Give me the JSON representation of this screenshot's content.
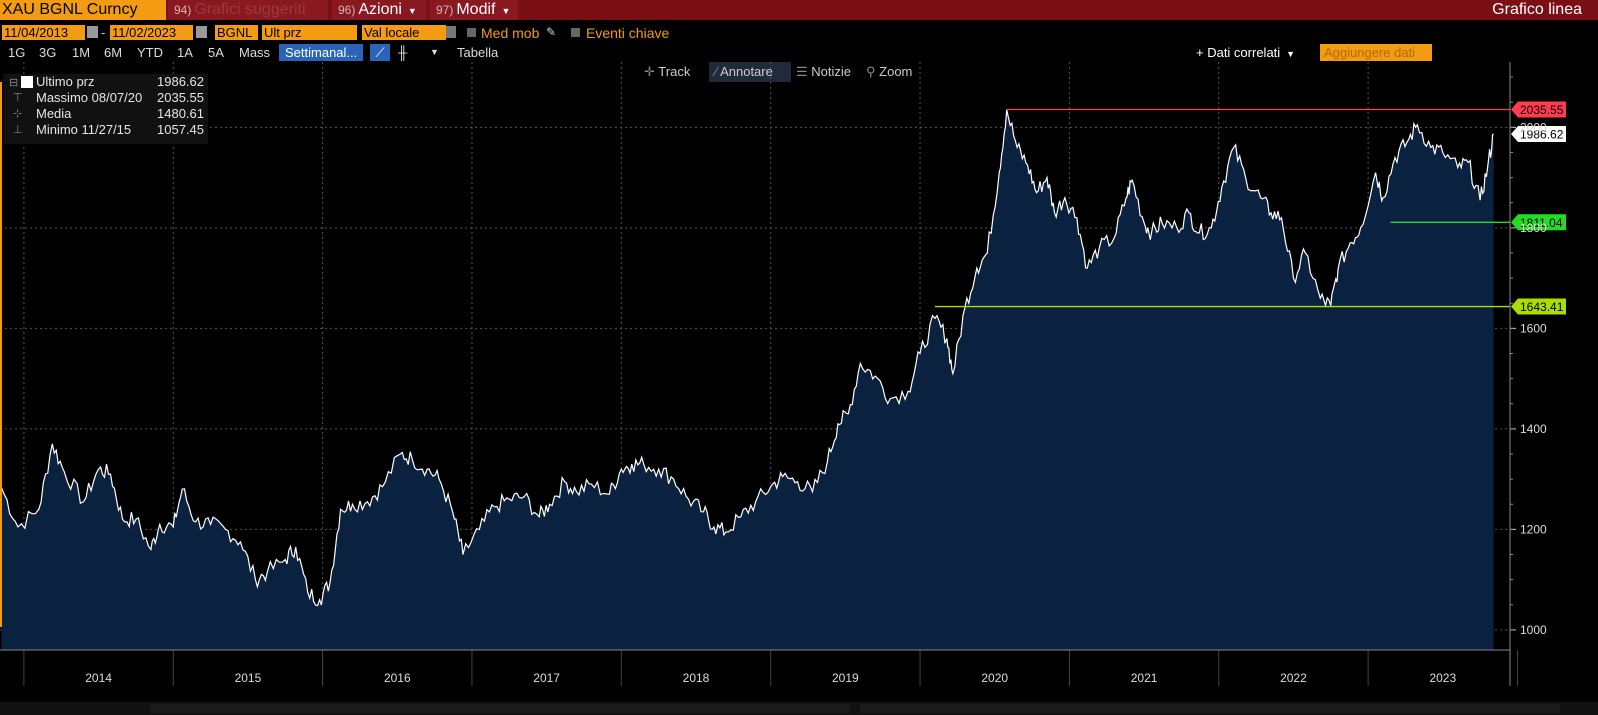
{
  "topbar": {
    "ticker": "XAU BGNL Curncy",
    "suggested_num": "94)",
    "suggested_label": "Grafici suggeriti",
    "azioni_num": "96)",
    "azioni_label": "Azioni",
    "modif_num": "97)",
    "modif_label": "Modif",
    "view_title": "Grafico linea"
  },
  "controls": {
    "start_date": "11/04/2013",
    "date_sep": "-",
    "end_date": "11/02/2023",
    "source": "BGNL",
    "field": "Ult prz",
    "currency": "Val locale",
    "moving_avg": "Med mob",
    "key_events": "Eventi chiave"
  },
  "periods": [
    "1G",
    "3G",
    "1M",
    "6M",
    "YTD",
    "1A",
    "5A",
    "Mass"
  ],
  "frequency": "Settimanal...",
  "table_label": "Tabella",
  "related_data": "+ Dati correlati",
  "add_data": "Aggiungere dati",
  "tools": {
    "track": "Track",
    "annotate": "Annotare",
    "news": "Notizie",
    "zoom": "Zoom"
  },
  "legend": {
    "last": {
      "label": "Ultimo prz",
      "value": "1986.62"
    },
    "high": {
      "label": "Massimo 08/07/20",
      "value": "2035.55"
    },
    "avg": {
      "label": "Media",
      "value": "1480.61"
    },
    "low": {
      "label": "Minimo 11/27/15",
      "value": "1057.45"
    }
  },
  "colors": {
    "accent": "#f39c12",
    "topbar": "#7a1015",
    "area": "#0b2140",
    "line": "#ffffff",
    "high": "#ff3b4e",
    "green": "#22dd22",
    "lime": "#aadd00"
  },
  "chart_data": {
    "type": "area",
    "x_start": "2013-11",
    "x_end": "2023-11",
    "ylim": [
      960,
      2130
    ],
    "yticks": [
      1000,
      1200,
      1400,
      1600,
      1800,
      2000
    ],
    "xticks": [
      "2014",
      "2015",
      "2016",
      "2017",
      "2018",
      "2019",
      "2020",
      "2021",
      "2022",
      "2023"
    ],
    "grid": true,
    "series": [
      {
        "name": "Ultimo prz",
        "x": [
          2013.85,
          2013.96,
          2014.1,
          2014.19,
          2014.27,
          2014.4,
          2014.5,
          2014.58,
          2014.66,
          2014.75,
          2014.85,
          2014.91,
          2015.0,
          2015.06,
          2015.15,
          2015.25,
          2015.35,
          2015.45,
          2015.55,
          2015.63,
          2015.75,
          2015.82,
          2015.9,
          2015.98,
          2016.05,
          2016.12,
          2016.2,
          2016.3,
          2016.4,
          2016.52,
          2016.6,
          2016.7,
          2016.78,
          2016.87,
          2016.94,
          2017.05,
          2017.15,
          2017.25,
          2017.35,
          2017.45,
          2017.52,
          2017.62,
          2017.7,
          2017.8,
          2017.92,
          2018.0,
          2018.07,
          2018.15,
          2018.25,
          2018.35,
          2018.45,
          2018.55,
          2018.62,
          2018.7,
          2018.8,
          2018.9,
          2019.0,
          2019.08,
          2019.18,
          2019.28,
          2019.38,
          2019.45,
          2019.52,
          2019.6,
          2019.7,
          2019.8,
          2019.92,
          2020.0,
          2020.1,
          2020.18,
          2020.22,
          2020.3,
          2020.38,
          2020.45,
          2020.53,
          2020.58,
          2020.65,
          2020.72,
          2020.78,
          2020.85,
          2020.9,
          2020.97,
          2021.05,
          2021.12,
          2021.2,
          2021.3,
          2021.38,
          2021.42,
          2021.5,
          2021.55,
          2021.62,
          2021.72,
          2021.8,
          2021.87,
          2021.95,
          2022.02,
          2022.1,
          2022.18,
          2022.28,
          2022.35,
          2022.42,
          2022.5,
          2022.58,
          2022.68,
          2022.75,
          2022.8,
          2022.88,
          2022.95,
          2023.05,
          2023.1,
          2023.18,
          2023.26,
          2023.33,
          2023.42,
          2023.5,
          2023.6,
          2023.67,
          2023.75,
          2023.8,
          2023.84
        ],
        "values": [
          1283,
          1205,
          1240,
          1370,
          1315,
          1255,
          1320,
          1310,
          1220,
          1220,
          1160,
          1210,
          1205,
          1280,
          1215,
          1210,
          1200,
          1175,
          1100,
          1115,
          1140,
          1165,
          1075,
          1060,
          1095,
          1240,
          1250,
          1255,
          1285,
          1350,
          1340,
          1320,
          1300,
          1235,
          1150,
          1200,
          1245,
          1260,
          1265,
          1225,
          1250,
          1295,
          1275,
          1290,
          1270,
          1320,
          1330,
          1330,
          1320,
          1300,
          1260,
          1235,
          1205,
          1195,
          1225,
          1255,
          1285,
          1305,
          1295,
          1275,
          1335,
          1410,
          1430,
          1530,
          1505,
          1460,
          1475,
          1550,
          1620,
          1580,
          1510,
          1640,
          1720,
          1750,
          1910,
          2035,
          1960,
          1925,
          1870,
          1900,
          1830,
          1860,
          1820,
          1720,
          1760,
          1780,
          1860,
          1895,
          1810,
          1790,
          1810,
          1800,
          1830,
          1790,
          1800,
          1880,
          1960,
          1900,
          1860,
          1830,
          1820,
          1700,
          1750,
          1660,
          1645,
          1720,
          1770,
          1800,
          1910,
          1860,
          1940,
          1970,
          2005,
          1960,
          1950,
          1920,
          1930,
          1855,
          1920,
          1986.62
        ]
      }
    ],
    "reference_lines": [
      {
        "value": 2035.55,
        "label": "2035.55",
        "color": "#ff3b4e",
        "from": 2020.58
      },
      {
        "value": 1986.62,
        "label": "1986.62",
        "color": "#ffffff",
        "from": null
      },
      {
        "value": 1811.04,
        "label": "1811.04",
        "color": "#22dd22",
        "from": 2023.15
      },
      {
        "value": 1643.41,
        "label": "1643.41",
        "color": "#aadd00",
        "from": 2020.1
      }
    ]
  }
}
